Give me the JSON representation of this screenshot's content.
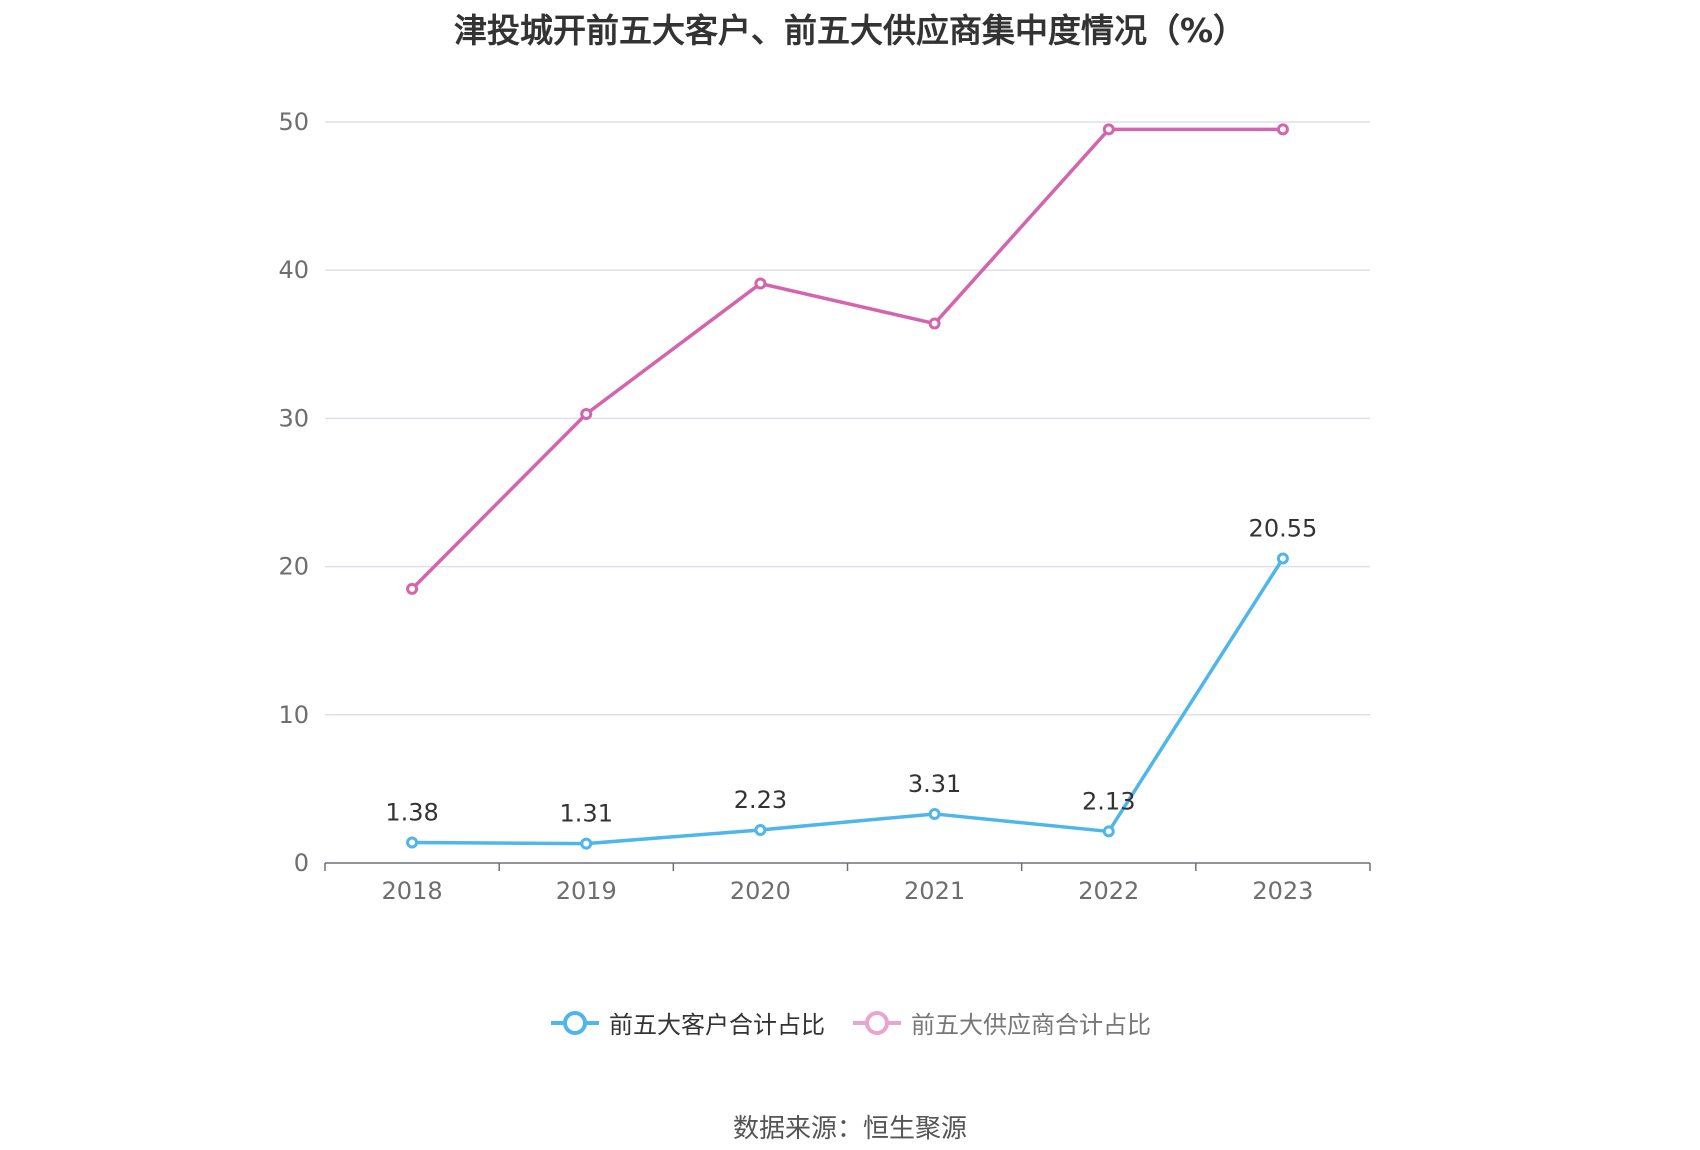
{
  "colors": {
    "customers": "#4fb6eb",
    "suppliers": "#d464ad",
    "suppliers_legend": "#e9a5cf",
    "grid": "#dde0ea",
    "axis": "#6e7079",
    "tick_text": "#6e6e6e",
    "label_text": "#333333"
  },
  "source": "数据来源：恒生聚源",
  "chart_data": {
    "type": "line",
    "title": "津投城开前五大客户、前五大供应商集中度情况（%）",
    "xlabel": "",
    "ylabel": "",
    "categories": [
      "2018",
      "2019",
      "2020",
      "2021",
      "2022",
      "2023"
    ],
    "ylim": [
      0,
      50
    ],
    "yticks": [
      "0",
      "10",
      "20",
      "30",
      "40",
      "50"
    ],
    "grid": true,
    "legend_position": "bottom",
    "series": [
      {
        "name": "前五大客户合计占比",
        "key": "customers",
        "values": [
          1.38,
          1.31,
          2.23,
          3.31,
          2.13,
          20.55
        ],
        "labels": [
          "1.38",
          "1.31",
          "2.23",
          "3.31",
          "2.13",
          "20.55"
        ]
      },
      {
        "name": "前五大供应商合计占比",
        "key": "suppliers",
        "values": [
          18.5,
          30.3,
          39.1,
          36.4,
          49.5,
          49.5
        ],
        "labels": []
      }
    ]
  }
}
